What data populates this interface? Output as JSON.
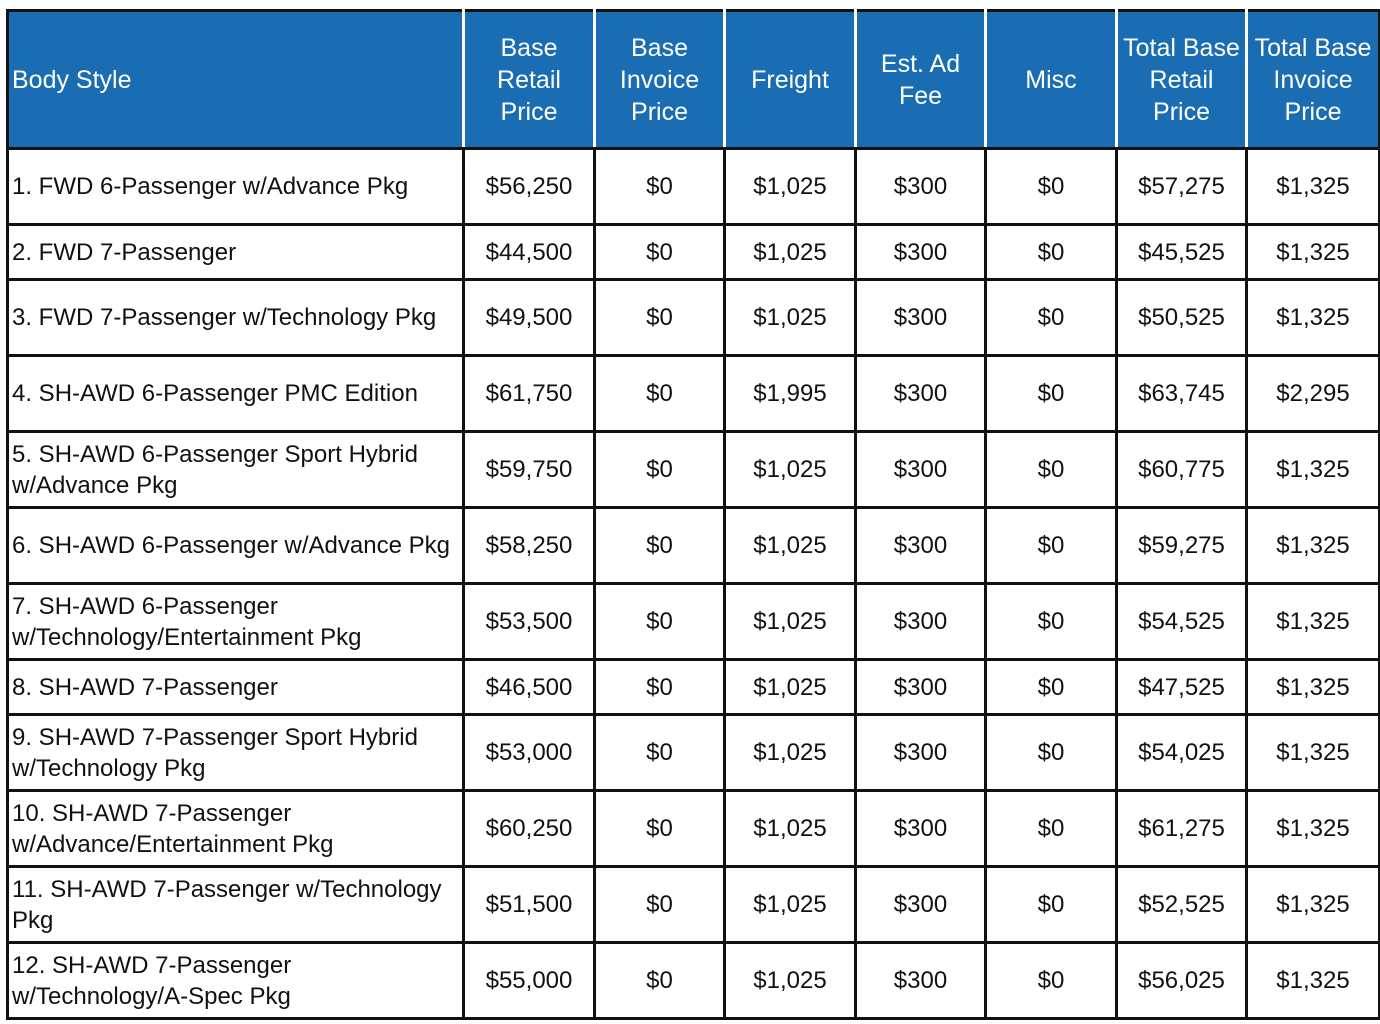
{
  "table": {
    "headers": [
      "Body Style",
      "Base Retail Price",
      "Base Invoice Price",
      "Freight",
      "Est. Ad Fee",
      "Misc",
      "Total Base Retail Price",
      "Total Base Invoice Price"
    ],
    "rows": [
      {
        "style": "1. FWD 6-Passenger w/Advance Pkg",
        "base_retail": "$56,250",
        "base_invoice": "$0",
        "freight": "$1,025",
        "ad_fee": "$300",
        "misc": "$0",
        "total_retail": "$57,275",
        "total_invoice": "$1,325"
      },
      {
        "style": "2. FWD 7-Passenger",
        "base_retail": "$44,500",
        "base_invoice": "$0",
        "freight": "$1,025",
        "ad_fee": "$300",
        "misc": "$0",
        "total_retail": "$45,525",
        "total_invoice": "$1,325"
      },
      {
        "style": "3. FWD 7-Passenger w/Technology Pkg",
        "base_retail": "$49,500",
        "base_invoice": "$0",
        "freight": "$1,025",
        "ad_fee": "$300",
        "misc": "$0",
        "total_retail": "$50,525",
        "total_invoice": "$1,325"
      },
      {
        "style": "4. SH-AWD 6-Passenger PMC Edition",
        "base_retail": "$61,750",
        "base_invoice": "$0",
        "freight": "$1,995",
        "ad_fee": "$300",
        "misc": "$0",
        "total_retail": "$63,745",
        "total_invoice": "$2,295"
      },
      {
        "style": "5. SH-AWD 6-Passenger Sport Hybrid w/Advance Pkg",
        "base_retail": "$59,750",
        "base_invoice": "$0",
        "freight": "$1,025",
        "ad_fee": "$300",
        "misc": "$0",
        "total_retail": "$60,775",
        "total_invoice": "$1,325"
      },
      {
        "style": "6. SH-AWD 6-Passenger w/Advance Pkg",
        "base_retail": "$58,250",
        "base_invoice": "$0",
        "freight": "$1,025",
        "ad_fee": "$300",
        "misc": "$0",
        "total_retail": "$59,275",
        "total_invoice": "$1,325"
      },
      {
        "style": "7. SH-AWD 6-Passenger w/Technology/Entertainment Pkg",
        "base_retail": "$53,500",
        "base_invoice": "$0",
        "freight": "$1,025",
        "ad_fee": "$300",
        "misc": "$0",
        "total_retail": "$54,525",
        "total_invoice": "$1,325"
      },
      {
        "style": "8. SH-AWD 7-Passenger",
        "base_retail": "$46,500",
        "base_invoice": "$0",
        "freight": "$1,025",
        "ad_fee": "$300",
        "misc": "$0",
        "total_retail": "$47,525",
        "total_invoice": "$1,325"
      },
      {
        "style": "9. SH-AWD 7-Passenger Sport Hybrid w/Technology Pkg",
        "base_retail": "$53,000",
        "base_invoice": "$0",
        "freight": "$1,025",
        "ad_fee": "$300",
        "misc": "$0",
        "total_retail": "$54,025",
        "total_invoice": "$1,325"
      },
      {
        "style": "10. SH-AWD 7-Passenger w/Advance/Entertainment Pkg",
        "base_retail": "$60,250",
        "base_invoice": "$0",
        "freight": "$1,025",
        "ad_fee": "$300",
        "misc": "$0",
        "total_retail": "$61,275",
        "total_invoice": "$1,325"
      },
      {
        "style": "11. SH-AWD 7-Passenger w/Technology Pkg",
        "base_retail": "$51,500",
        "base_invoice": "$0",
        "freight": "$1,025",
        "ad_fee": "$300",
        "misc": "$0",
        "total_retail": "$52,525",
        "total_invoice": "$1,325"
      },
      {
        "style": "12. SH-AWD 7-Passenger w/Technology/A-Spec Pkg",
        "base_retail": "$55,000",
        "base_invoice": "$0",
        "freight": "$1,025",
        "ad_fee": "$300",
        "misc": "$0",
        "total_retail": "$56,025",
        "total_invoice": "$1,325"
      }
    ]
  },
  "colors": {
    "header_bg": "#1a6db3",
    "header_text": "#ffffff",
    "border": "#111111"
  }
}
